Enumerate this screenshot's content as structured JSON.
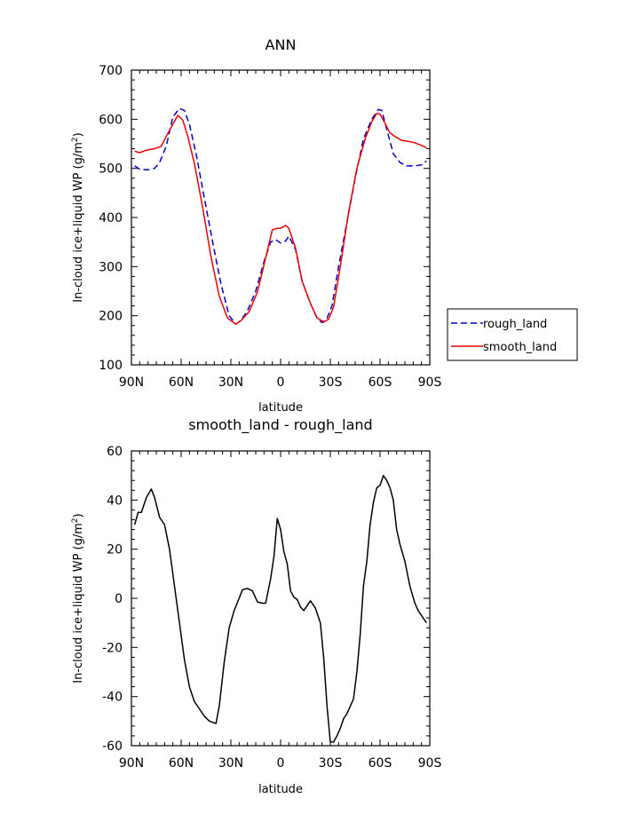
{
  "chart_data": [
    {
      "type": "line",
      "title": "ANN",
      "xlabel": "latitude",
      "ylabel": "In-cloud ice+liquid WP",
      "ylabel_unit": "(g/m",
      "ylabel_sup": "2",
      "ylabel_close": ")",
      "xlim": [
        90,
        -90
      ],
      "ylim": [
        100,
        700
      ],
      "x_ticks": [
        90,
        60,
        30,
        0,
        -30,
        -60,
        -90
      ],
      "x_tick_labels": [
        "90N",
        "60N",
        "30N",
        "0",
        "30S",
        "60S",
        "90S"
      ],
      "y_ticks": [
        100,
        200,
        300,
        400,
        500,
        600,
        700
      ],
      "y_tick_labels": [
        "100",
        "200",
        "300",
        "400",
        "500",
        "600",
        "700"
      ],
      "legend_position": "right",
      "series": [
        {
          "name": "rough_land",
          "color": "#0000cc",
          "dash": "dashed",
          "x": [
            88,
            85,
            80,
            76,
            73,
            69,
            65,
            61,
            58,
            55,
            51,
            46,
            41,
            36,
            31,
            27,
            24,
            20,
            15,
            10,
            6,
            3,
            0,
            -3,
            -5,
            -9,
            -13,
            -18,
            -22,
            -25,
            -28,
            -31,
            -35,
            -40,
            -45,
            -50,
            -55,
            -59,
            -61,
            -64,
            -68,
            -72,
            -76,
            -81,
            -85,
            -88
          ],
          "y": [
            505,
            498,
            497,
            500,
            512,
            545,
            605,
            622,
            618,
            590,
            530,
            440,
            350,
            265,
            200,
            183,
            190,
            210,
            250,
            310,
            350,
            355,
            348,
            352,
            362,
            335,
            270,
            225,
            195,
            186,
            195,
            220,
            300,
            390,
            480,
            560,
            600,
            620,
            618,
            580,
            530,
            512,
            505,
            505,
            507,
            515
          ]
        },
        {
          "name": "smooth_land",
          "color": "#ee0000",
          "dash": "solid",
          "x": [
            88,
            85,
            81,
            76,
            72,
            69,
            65,
            62,
            59,
            56,
            52,
            47,
            42,
            37,
            32,
            27,
            24,
            19,
            14,
            9,
            5,
            2,
            0,
            -3,
            -5,
            -9,
            -13,
            -18,
            -22,
            -26,
            -29,
            -32,
            -36,
            -41,
            -46,
            -51,
            -55,
            -58,
            -60,
            -63,
            -66,
            -69,
            -73,
            -77,
            -81,
            -85,
            -88
          ],
          "y": [
            535,
            532,
            537,
            540,
            545,
            565,
            590,
            608,
            598,
            565,
            510,
            420,
            320,
            240,
            195,
            183,
            190,
            208,
            248,
            318,
            375,
            378,
            378,
            384,
            378,
            338,
            270,
            225,
            196,
            187,
            193,
            218,
            300,
            410,
            500,
            560,
            595,
            612,
            610,
            592,
            572,
            565,
            557,
            555,
            552,
            547,
            542
          ]
        }
      ]
    },
    {
      "type": "line",
      "title": "smooth_land - rough_land",
      "xlabel": "latitude",
      "ylabel": "In-cloud ice+liquid WP",
      "ylabel_unit": "(g/m",
      "ylabel_sup": "2",
      "ylabel_close": ")",
      "xlim": [
        90,
        -90
      ],
      "ylim": [
        -60,
        60
      ],
      "x_ticks": [
        90,
        60,
        30,
        0,
        -30,
        -60,
        -90
      ],
      "x_tick_labels": [
        "90N",
        "60N",
        "30N",
        "0",
        "30S",
        "60S",
        "90S"
      ],
      "y_ticks": [
        -60,
        -40,
        -20,
        0,
        20,
        40,
        60
      ],
      "y_tick_labels": [
        "-60",
        "-40",
        "-20",
        "0",
        "20",
        "40",
        "60"
      ],
      "series": [
        {
          "color": "#000000",
          "dash": "solid",
          "x": [
            88,
            86,
            84,
            81,
            78,
            76,
            73,
            70,
            67,
            64,
            61,
            58,
            55,
            52,
            49,
            46,
            43,
            39,
            37,
            34,
            31,
            28,
            25,
            23,
            20,
            17,
            14,
            11,
            9,
            6,
            4,
            2,
            0,
            -2,
            -4,
            -6,
            -8,
            -10,
            -12,
            -14,
            -16,
            -18,
            -21,
            -24,
            -26,
            -28,
            -30,
            -32,
            -34,
            -36,
            -38,
            -40,
            -42,
            -44,
            -46,
            -48,
            -50,
            -52,
            -54,
            -56,
            -58,
            -60,
            -62,
            -64,
            -66,
            -68,
            -70,
            -72,
            -75,
            -78,
            -81,
            -83,
            -86,
            -88
          ],
          "y": [
            30,
            35,
            35,
            41,
            44.5,
            41,
            33,
            30,
            20,
            5,
            -10,
            -25,
            -36,
            -42,
            -45,
            -48,
            -50,
            -51,
            -44,
            -26,
            -12,
            -5,
            0,
            3.5,
            4,
            3,
            -1.5,
            -2,
            -2,
            8,
            17,
            32.5,
            28,
            19,
            14,
            3,
            0.5,
            -0.5,
            -3.5,
            -5,
            -3,
            -1,
            -4,
            -10,
            -24,
            -44,
            -58.5,
            -58.5,
            -56,
            -53,
            -49,
            -47,
            -44,
            -41,
            -30,
            -15,
            5,
            15,
            30,
            39,
            45,
            46,
            50,
            48,
            45,
            40,
            28,
            22,
            15,
            5,
            -2,
            -5,
            -8,
            -10
          ]
        }
      ]
    }
  ]
}
